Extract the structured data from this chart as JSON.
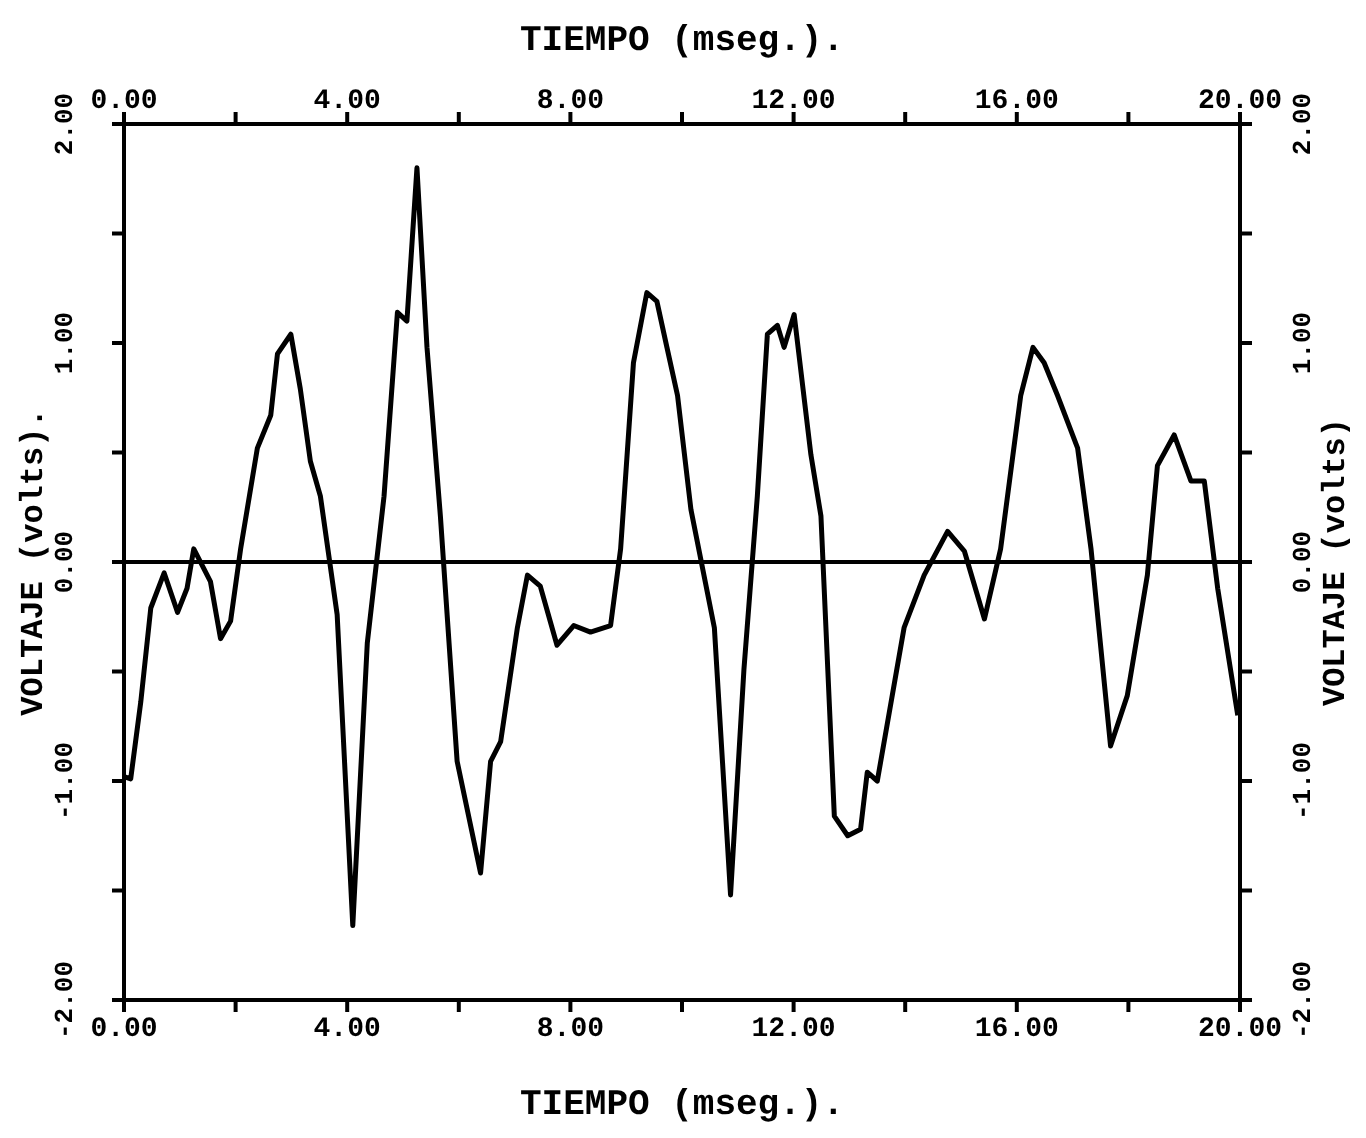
{
  "chart_data": {
    "type": "line",
    "xlabel": "TIEMPO (mseg.).",
    "x2label": "TIEMPO (mseg.).",
    "ylabel": "VOLTAJE (volts).",
    "y2label": "VOLTAJE (volts)",
    "xlim": [
      0,
      20
    ],
    "x2lim": [
      0,
      20
    ],
    "ylim": [
      -2,
      2
    ],
    "y2lim": [
      -2,
      2
    ],
    "xticks": [
      {
        "value": 0,
        "label": "0.00"
      },
      {
        "value": 2,
        "label": null
      },
      {
        "value": 4,
        "label": "4.00"
      },
      {
        "value": 6,
        "label": null
      },
      {
        "value": 8,
        "label": "8.00"
      },
      {
        "value": 10,
        "label": null
      },
      {
        "value": 12,
        "label": "12.00"
      },
      {
        "value": 14,
        "label": null
      },
      {
        "value": 16,
        "label": "16.00"
      },
      {
        "value": 18,
        "label": null
      },
      {
        "value": 20,
        "label": "20.00"
      }
    ],
    "x2ticks": [
      {
        "value": 0,
        "label": "0.00"
      },
      {
        "value": 2,
        "label": null
      },
      {
        "value": 4,
        "label": "4.00"
      },
      {
        "value": 6,
        "label": null
      },
      {
        "value": 8,
        "label": "8.00"
      },
      {
        "value": 10,
        "label": null
      },
      {
        "value": 12,
        "label": "12.00"
      },
      {
        "value": 14,
        "label": null
      },
      {
        "value": 16,
        "label": "16.00"
      },
      {
        "value": 18,
        "label": null
      },
      {
        "value": 20,
        "label": "20.00"
      }
    ],
    "yticks": [
      {
        "value": -2,
        "label": "-2.00"
      },
      {
        "value": -1.5,
        "label": null
      },
      {
        "value": -1,
        "label": "-1.00"
      },
      {
        "value": -0.5,
        "label": null
      },
      {
        "value": 0,
        "label": "0.00"
      },
      {
        "value": 0.5,
        "label": null
      },
      {
        "value": 1,
        "label": "1.00"
      },
      {
        "value": 1.5,
        "label": null
      },
      {
        "value": 2,
        "label": "2.00"
      }
    ],
    "y2ticks": [
      {
        "value": -2,
        "label": "-2.00"
      },
      {
        "value": -1.5,
        "label": null
      },
      {
        "value": -1,
        "label": "-1.00"
      },
      {
        "value": -0.5,
        "label": null
      },
      {
        "value": 0,
        "label": "0.00"
      },
      {
        "value": 0.5,
        "label": null
      },
      {
        "value": 1,
        "label": "1.00"
      },
      {
        "value": 1.5,
        "label": null
      },
      {
        "value": 2,
        "label": "2.00"
      }
    ],
    "legend": false,
    "marker": "none",
    "line_style": "solid",
    "ref_lines": [
      {
        "axis": "y",
        "value": 0,
        "color": "#000000"
      }
    ],
    "series": [
      {
        "color": "#000000",
        "x": [
          0,
          0.12,
          0.3,
          0.48,
          0.72,
          0.96,
          1.13,
          1.25,
          1.55,
          1.73,
          1.91,
          2.09,
          2.39,
          2.63,
          2.75,
          2.99,
          3.16,
          3.34,
          3.52,
          3.82,
          4.1,
          4.36,
          4.66,
          4.9,
          5.07,
          5.25,
          5.43,
          5.67,
          5.97,
          6.39,
          6.57,
          6.75,
          7.05,
          7.23,
          7.46,
          7.76,
          8.06,
          8.36,
          8.72,
          8.9,
          9.13,
          9.37,
          9.55,
          9.73,
          9.92,
          10.16,
          10.58,
          10.87,
          11.11,
          11.35,
          11.53,
          11.71,
          11.83,
          12.01,
          12.31,
          12.49,
          12.73,
          12.97,
          13.2,
          13.32,
          13.5,
          13.98,
          14.34,
          14.76,
          15.06,
          15.42,
          15.71,
          16.07,
          16.29,
          16.49,
          16.73,
          17.09,
          17.33,
          17.68,
          17.98,
          18.34,
          18.52,
          18.82,
          19.12,
          19.36,
          19.6,
          19.96
        ],
        "values": [
          -0.98,
          -0.99,
          -0.64,
          -0.21,
          -0.05,
          -0.23,
          -0.12,
          0.06,
          -0.09,
          -0.35,
          -0.27,
          0.06,
          0.52,
          0.67,
          0.95,
          1.04,
          0.79,
          0.46,
          0.3,
          -0.24,
          -1.66,
          -0.37,
          0.3,
          1.14,
          1.1,
          1.8,
          0.98,
          0.21,
          -0.91,
          -1.42,
          -0.91,
          -0.82,
          -0.3,
          -0.06,
          -0.11,
          -0.38,
          -0.29,
          -0.32,
          -0.29,
          0.06,
          0.91,
          1.23,
          1.19,
          0.98,
          0.76,
          0.24,
          -0.3,
          -1.52,
          -0.49,
          0.3,
          1.04,
          1.08,
          0.98,
          1.13,
          0.49,
          0.21,
          -1.16,
          -1.25,
          -1.22,
          -0.96,
          -1.0,
          -0.3,
          -0.06,
          0.14,
          0.05,
          -0.26,
          0.06,
          0.76,
          0.98,
          0.91,
          0.76,
          0.52,
          0.06,
          -0.84,
          -0.61,
          -0.06,
          0.44,
          0.58,
          0.37,
          0.37,
          -0.12,
          -0.7
        ]
      }
    ]
  }
}
